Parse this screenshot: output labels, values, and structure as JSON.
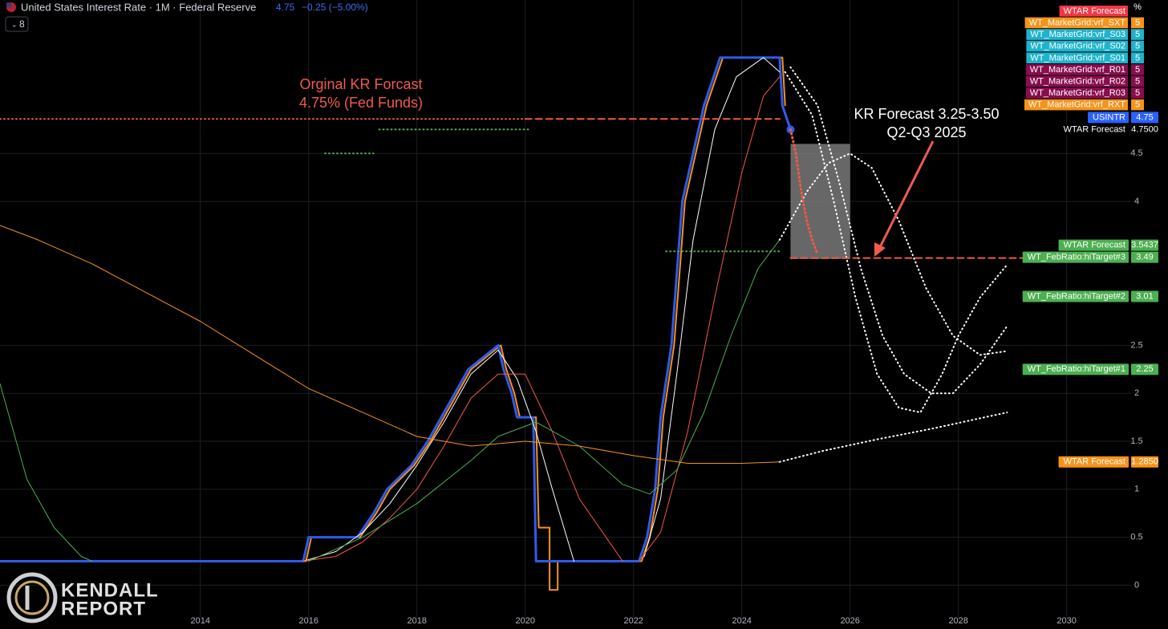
{
  "chart_data": {
    "type": "line",
    "title": "United States Interest Rate · 1M · Federal Reserve",
    "last_value": 4.75,
    "change_label": "−0.25 (−5.00%)",
    "interval_count": 8,
    "unit": "%",
    "xlim": [
      2010.3,
      2031.19
    ],
    "ylim": [
      -0.34,
      6.1
    ],
    "xticks": [
      2014,
      2016,
      2018,
      2020,
      2022,
      2024,
      2026,
      2028,
      2030
    ],
    "yticks": [
      0,
      0.5,
      1,
      1.5,
      2,
      2.5,
      4,
      4.5
    ],
    "grid": true,
    "annotations": [
      "Orginal KR Forcast",
      "4.75% (Fed Funds)",
      "KR Forecast 3.25-3.50",
      "Q2-Q3 2025"
    ],
    "highlight_box": {
      "xlim": [
        2024.9,
        2026.0
      ],
      "ylim": [
        3.4,
        4.6
      ],
      "color": "#8a8a8a"
    },
    "series": [
      {
        "color": "#f7931a",
        "width": 2,
        "dash": "solid",
        "x": [
          2010.3,
          2015.95,
          2016.05,
          2016.95,
          2017.25,
          2017.5,
          2017.95,
          2018.25,
          2018.5,
          2018.75,
          2019.0,
          2019.55,
          2019.65,
          2019.8,
          2019.9,
          2020.2,
          2020.25,
          2020.45,
          2020.45,
          2020.6,
          2020.6,
          2022.15,
          2022.3,
          2022.45,
          2022.55,
          2022.75,
          2022.85,
          2022.95,
          2023.15,
          2023.25,
          2023.35,
          2023.5,
          2023.65,
          2024.75,
          2024.8
        ],
        "values": [
          0.25,
          0.25,
          0.5,
          0.5,
          0.75,
          1.0,
          1.25,
          1.5,
          1.75,
          2.0,
          2.25,
          2.5,
          2.25,
          2.0,
          1.75,
          1.75,
          0.6,
          0.6,
          -0.05,
          -0.05,
          0.25,
          0.25,
          0.5,
          1.0,
          1.75,
          2.5,
          3.25,
          4.0,
          4.5,
          4.75,
          5.0,
          5.25,
          5.5,
          5.5,
          5.0
        ]
      },
      {
        "color": "#2f5bea",
        "width": 3,
        "dash": "solid",
        "end_marker": true,
        "x": [
          2010.3,
          2015.9,
          2016.0,
          2016.9,
          2017.2,
          2017.45,
          2017.9,
          2018.2,
          2018.45,
          2018.7,
          2018.95,
          2019.5,
          2019.6,
          2019.75,
          2019.85,
          2020.15,
          2020.2,
          2022.1,
          2022.25,
          2022.4,
          2022.5,
          2022.7,
          2022.8,
          2022.9,
          2023.1,
          2023.2,
          2023.3,
          2023.45,
          2023.6,
          2024.7,
          2024.75,
          2024.9
        ],
        "values": [
          0.25,
          0.25,
          0.5,
          0.5,
          0.75,
          1.0,
          1.25,
          1.5,
          1.75,
          2.0,
          2.25,
          2.5,
          2.25,
          2.0,
          1.75,
          1.75,
          0.25,
          0.25,
          0.5,
          1.0,
          1.75,
          2.5,
          3.25,
          4.0,
          4.5,
          4.75,
          5.0,
          5.25,
          5.5,
          5.5,
          5.0,
          4.75
        ]
      },
      {
        "color": "#ffffff",
        "width": 1,
        "dash": "solid",
        "x": [
          2015.9,
          2016.5,
          2017.0,
          2017.5,
          2018.0,
          2018.5,
          2019.0,
          2019.5,
          2019.85,
          2020.2,
          2020.5,
          2020.9,
          2021.5,
          2022.2,
          2022.5,
          2022.8,
          2023.1,
          2023.5,
          2023.9,
          2024.4,
          2024.7
        ],
        "values": [
          0.25,
          0.35,
          0.55,
          0.85,
          1.25,
          1.7,
          2.2,
          2.45,
          2.15,
          1.6,
          1.0,
          0.25,
          null,
          0.3,
          0.9,
          2.2,
          3.6,
          4.75,
          5.3,
          5.5,
          5.35
        ]
      },
      {
        "color": "#f05a45",
        "width": 1,
        "dash": "solid",
        "x": [
          2015.9,
          2016.5,
          2017.0,
          2017.5,
          2018.0,
          2018.5,
          2019.0,
          2019.5,
          2020.0,
          2020.5,
          2021.0,
          2021.8,
          2022.0,
          2022.1,
          2022.5,
          2023.0,
          2023.5,
          2024.0,
          2024.4,
          2024.7
        ],
        "values": [
          0.25,
          0.3,
          0.45,
          0.7,
          1.0,
          1.45,
          1.95,
          2.2,
          2.2,
          1.6,
          0.9,
          0.25,
          null,
          0.25,
          0.55,
          1.6,
          3.0,
          4.3,
          5.1,
          5.3
        ]
      },
      {
        "color": "#4caf50",
        "width": 1,
        "dash": "solid",
        "x": [
          2010.3,
          2010.8,
          2011.3,
          2011.8,
          2012.0,
          2014.0,
          2016.0,
          2017.0,
          2018.0,
          2019.0,
          2019.5,
          2020.2,
          2021.0,
          2021.8,
          2022.3,
          2022.8,
          2023.3,
          2023.8,
          2024.3,
          2024.7
        ],
        "values": [
          2.1,
          1.1,
          0.6,
          0.3,
          0.25,
          null,
          0.25,
          0.5,
          0.85,
          1.3,
          1.55,
          1.7,
          1.45,
          1.05,
          0.95,
          1.2,
          1.8,
          2.6,
          3.3,
          3.6
        ]
      },
      {
        "color": "#f7931a",
        "width": 1,
        "dash": "solid",
        "x": [
          2010.3,
          2011,
          2012,
          2013,
          2014,
          2015,
          2016,
          2017,
          2018,
          2019,
          2020,
          2021,
          2022,
          2023,
          2024,
          2024.7
        ],
        "values": [
          3.75,
          3.6,
          3.35,
          3.05,
          2.75,
          2.4,
          2.05,
          1.8,
          1.55,
          1.45,
          1.5,
          1.45,
          1.35,
          1.27,
          1.27,
          1.285
        ]
      },
      {
        "color": "#ffffff",
        "width": 2,
        "dash": "dotted",
        "x": [
          2024.8,
          2025.3,
          2025.7,
          2026.1,
          2026.5,
          2026.9,
          2027.3,
          2027.7,
          2028.0,
          2028.4,
          2028.9
        ],
        "values": [
          5.35,
          4.9,
          4.0,
          3.0,
          2.2,
          1.85,
          1.8,
          2.2,
          2.6,
          3.0,
          3.34
        ]
      },
      {
        "color": "#ffffff",
        "width": 2,
        "dash": "dotted",
        "x": [
          2024.7,
          2025.2,
          2025.6,
          2026.0,
          2026.4,
          2026.9,
          2027.4,
          2027.9,
          2028.4,
          2028.9
        ],
        "values": [
          3.6,
          4.1,
          4.4,
          4.5,
          4.35,
          3.8,
          3.1,
          2.6,
          2.4,
          2.44
        ]
      },
      {
        "color": "#ffffff",
        "width": 2,
        "dash": "dotted",
        "x": [
          2024.9,
          2025.4,
          2025.8,
          2026.2,
          2026.6,
          2027.0,
          2027.5,
          2027.9,
          2028.4,
          2028.9
        ],
        "values": [
          5.4,
          5.0,
          4.2,
          3.3,
          2.6,
          2.2,
          2.0,
          2.0,
          2.3,
          2.7
        ]
      },
      {
        "color": "#ffffff",
        "width": 2,
        "dash": "dotted",
        "x": [
          2024.7,
          2025.5,
          2026.5,
          2027.5,
          2028.9
        ],
        "values": [
          1.285,
          1.4,
          1.52,
          1.63,
          1.8
        ]
      },
      {
        "color": "#f05a45",
        "width": 3,
        "dash": "dotted",
        "x": [
          2024.9,
          2025.0,
          2025.1,
          2025.2,
          2025.3,
          2025.4
        ],
        "values": [
          4.75,
          4.5,
          4.1,
          3.8,
          3.6,
          3.45
        ]
      },
      {
        "color": "#f05a45",
        "width": 2,
        "dash": "dotted",
        "x": [
          2010.3,
          2020.0
        ],
        "values": [
          4.86,
          4.86
        ]
      },
      {
        "color": "#f05a45",
        "width": 2,
        "dash": "dashed",
        "x": [
          2020.0,
          2024.7
        ],
        "values": [
          4.86,
          4.86
        ]
      },
      {
        "color": "#4caf50",
        "width": 2,
        "dash": "dotted",
        "x": [
          2017.3,
          2020.1
        ],
        "values": [
          4.75,
          4.75
        ]
      },
      {
        "color": "#4caf50",
        "width": 2,
        "dash": "dotted",
        "x": [
          2016.3,
          2017.2
        ],
        "values": [
          4.5,
          4.5
        ]
      },
      {
        "color": "#4caf50",
        "width": 2,
        "dash": "dotted",
        "x": [
          2022.6,
          2024.7
        ],
        "values": [
          3.48,
          3.48
        ]
      },
      {
        "color": "#f05a45",
        "width": 2,
        "dash": "dashed",
        "x": [
          2024.9,
          2031.1
        ],
        "values": [
          3.41,
          3.41
        ]
      }
    ],
    "legend": [
      {
        "name": "WTAR Forecast",
        "color": "#f23645"
      },
      {
        "name": "WT_MarketGrid:vrf_SXT",
        "value": 5,
        "color": "#f7931a"
      },
      {
        "name": "WT_MarketGrid:vrf_S03",
        "value": 5,
        "color": "#1fb3cc"
      },
      {
        "name": "WT_MarketGrid:vrf_S02",
        "value": 5,
        "color": "#1fb3cc"
      },
      {
        "name": "WT_MarketGrid:vrf_S01",
        "value": 5,
        "color": "#1fb3cc"
      },
      {
        "name": "WT_MarketGrid:vrf_R01",
        "value": 5,
        "color": "#880e4f"
      },
      {
        "name": "WT_MarketGrid:vrf_R02",
        "value": 5,
        "color": "#880e4f"
      },
      {
        "name": "WT_MarketGrid:vrf_R03",
        "value": 5,
        "color": "#880e4f"
      },
      {
        "name": "WT_MarketGrid:vrf_RXT",
        "value": 5,
        "color": "#f7931a"
      }
    ],
    "price_tags": [
      {
        "name": "WTAR Forecast",
        "value": 4.75,
        "value_label": "4.7500",
        "color": "#000000"
      },
      {
        "name": "USINTR",
        "value": 4.75,
        "color": "#2962ff"
      },
      {
        "name": "WTAR Forecast",
        "value": 3.5437,
        "color": "#4caf50"
      },
      {
        "name": "WT_FebRatio:hiTarget#3",
        "value": 3.49,
        "color": "#4caf50"
      },
      {
        "name": "WT_FebRatio:hiTarget#2",
        "value": 3.01,
        "color": "#4caf50"
      },
      {
        "name": "WT_FebRatio:hiTarget#1",
        "value": 2.25,
        "color": "#4caf50"
      },
      {
        "name": "WTAR Forecast",
        "value": 1.285,
        "value_label": "1.2850",
        "color": "#f7931a"
      }
    ],
    "logo": {
      "line1": "KENDALL",
      "line2": "REPORT"
    }
  }
}
